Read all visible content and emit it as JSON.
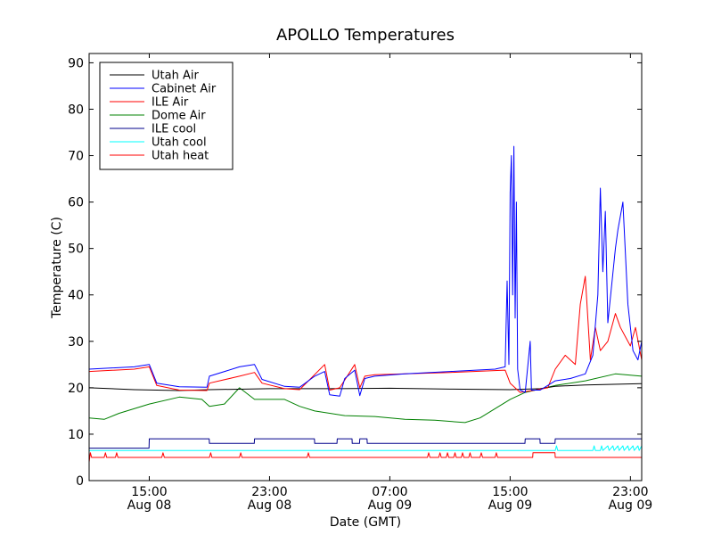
{
  "chart_data": {
    "type": "line",
    "title": "APOLLO Temperatures",
    "xlabel": "Date (GMT)",
    "ylabel": "Temperature (C)",
    "xlim": [
      "2012-08-08 11:00",
      "2012-08-09 23:45"
    ],
    "ylim": [
      0,
      92
    ],
    "grid": false,
    "legend": "top-left",
    "y_ticks": [
      0,
      10,
      20,
      30,
      40,
      50,
      60,
      70,
      80,
      90
    ],
    "x_ticks": [
      {
        "t": "2012-08-08 15:00",
        "line1": "15:00",
        "line2": "Aug 08"
      },
      {
        "t": "2012-08-08 23:00",
        "line1": "23:00",
        "line2": "Aug 08"
      },
      {
        "t": "2012-08-09 07:00",
        "line1": "07:00",
        "line2": "Aug 09"
      },
      {
        "t": "2012-08-09 15:00",
        "line1": "15:00",
        "line2": "Aug 09"
      },
      {
        "t": "2012-08-09 23:00",
        "line1": "23:00",
        "line2": "Aug 09"
      }
    ],
    "series": [
      {
        "name": "Utah Air",
        "color": "#000000",
        "points": [
          [
            "2012-08-08 11:00",
            20.0
          ],
          [
            "2012-08-08 14:00",
            19.6
          ],
          [
            "2012-08-08 17:00",
            19.4
          ],
          [
            "2012-08-08 19:00",
            19.6
          ],
          [
            "2012-08-08 23:00",
            19.8
          ],
          [
            "2012-08-09 03:00",
            19.8
          ],
          [
            "2012-08-09 07:00",
            19.9
          ],
          [
            "2012-08-09 11:00",
            19.7
          ],
          [
            "2012-08-09 15:00",
            19.6
          ],
          [
            "2012-08-09 17:00",
            19.8
          ],
          [
            "2012-08-09 18:00",
            20.3
          ],
          [
            "2012-08-09 20:00",
            20.6
          ],
          [
            "2012-08-09 23:45",
            20.9
          ]
        ]
      },
      {
        "name": "Cabinet Air",
        "color": "#0000ff",
        "points": [
          [
            "2012-08-08 11:00",
            24.0
          ],
          [
            "2012-08-08 14:00",
            24.5
          ],
          [
            "2012-08-08 15:00",
            25.0
          ],
          [
            "2012-08-08 15:30",
            21.0
          ],
          [
            "2012-08-08 17:00",
            20.2
          ],
          [
            "2012-08-08 18:50",
            20.1
          ],
          [
            "2012-08-08 19:00",
            22.5
          ],
          [
            "2012-08-08 21:00",
            24.5
          ],
          [
            "2012-08-08 22:00",
            25.0
          ],
          [
            "2012-08-08 22:30",
            21.8
          ],
          [
            "2012-08-09 00:00",
            20.3
          ],
          [
            "2012-08-09 01:00",
            20.1
          ],
          [
            "2012-08-09 02:00",
            22.5
          ],
          [
            "2012-08-09 02:40",
            23.5
          ],
          [
            "2012-08-09 03:00",
            18.5
          ],
          [
            "2012-08-09 03:40",
            18.2
          ],
          [
            "2012-08-09 04:00",
            22.0
          ],
          [
            "2012-08-09 04:40",
            23.8
          ],
          [
            "2012-08-09 05:00",
            18.3
          ],
          [
            "2012-08-09 05:20",
            22.0
          ],
          [
            "2012-08-09 06:00",
            22.5
          ],
          [
            "2012-08-09 08:00",
            23.0
          ],
          [
            "2012-08-09 11:00",
            23.5
          ],
          [
            "2012-08-09 14:00",
            24.0
          ],
          [
            "2012-08-09 14:40",
            24.5
          ],
          [
            "2012-08-09 14:48",
            43.0
          ],
          [
            "2012-08-09 14:55",
            25.0
          ],
          [
            "2012-08-09 15:00",
            62.0
          ],
          [
            "2012-08-09 15:05",
            70.0
          ],
          [
            "2012-08-09 15:10",
            40.0
          ],
          [
            "2012-08-09 15:15",
            72.0
          ],
          [
            "2012-08-09 15:20",
            35.0
          ],
          [
            "2012-08-09 15:25",
            60.0
          ],
          [
            "2012-08-09 15:30",
            24.0
          ],
          [
            "2012-08-09 15:40",
            19.5
          ],
          [
            "2012-08-09 16:00",
            19.0
          ],
          [
            "2012-08-09 16:20",
            30.0
          ],
          [
            "2012-08-09 16:25",
            19.5
          ],
          [
            "2012-08-09 17:00",
            19.5
          ],
          [
            "2012-08-09 18:00",
            21.5
          ],
          [
            "2012-08-09 19:00",
            22.0
          ],
          [
            "2012-08-09 20:00",
            23.0
          ],
          [
            "2012-08-09 20:30",
            27.0
          ],
          [
            "2012-08-09 20:50",
            40.0
          ],
          [
            "2012-08-09 21:00",
            63.0
          ],
          [
            "2012-08-09 21:10",
            45.0
          ],
          [
            "2012-08-09 21:20",
            58.0
          ],
          [
            "2012-08-09 21:30",
            34.0
          ],
          [
            "2012-08-09 22:00",
            50.0
          ],
          [
            "2012-08-09 22:10",
            54.0
          ],
          [
            "2012-08-09 22:30",
            60.0
          ],
          [
            "2012-08-09 22:50",
            38.0
          ],
          [
            "2012-08-09 23:10",
            28.0
          ],
          [
            "2012-08-09 23:30",
            26.0
          ],
          [
            "2012-08-09 23:45",
            30.0
          ]
        ]
      },
      {
        "name": "ILE Air",
        "color": "#ff0000",
        "points": [
          [
            "2012-08-08 11:00",
            23.5
          ],
          [
            "2012-08-08 14:00",
            24.0
          ],
          [
            "2012-08-08 15:00",
            24.5
          ],
          [
            "2012-08-08 15:30",
            20.5
          ],
          [
            "2012-08-08 17:00",
            19.5
          ],
          [
            "2012-08-08 18:50",
            19.4
          ],
          [
            "2012-08-08 19:00",
            21.0
          ],
          [
            "2012-08-08 21:00",
            22.5
          ],
          [
            "2012-08-08 22:00",
            23.3
          ],
          [
            "2012-08-08 22:30",
            21.0
          ],
          [
            "2012-08-09 00:00",
            19.8
          ],
          [
            "2012-08-09 01:00",
            19.6
          ],
          [
            "2012-08-09 02:40",
            25.0
          ],
          [
            "2012-08-09 03:00",
            19.5
          ],
          [
            "2012-08-09 03:40",
            20.0
          ],
          [
            "2012-08-09 04:40",
            25.0
          ],
          [
            "2012-08-09 05:00",
            20.0
          ],
          [
            "2012-08-09 05:20",
            22.5
          ],
          [
            "2012-08-09 06:00",
            22.8
          ],
          [
            "2012-08-09 11:00",
            23.3
          ],
          [
            "2012-08-09 14:40",
            23.8
          ],
          [
            "2012-08-09 15:00",
            21.0
          ],
          [
            "2012-08-09 15:40",
            19.0
          ],
          [
            "2012-08-09 16:40",
            19.5
          ],
          [
            "2012-08-09 17:30",
            20.0
          ],
          [
            "2012-08-09 18:00",
            24.0
          ],
          [
            "2012-08-09 18:40",
            27.0
          ],
          [
            "2012-08-09 19:20",
            25.0
          ],
          [
            "2012-08-09 19:40",
            38.0
          ],
          [
            "2012-08-09 20:00",
            44.0
          ],
          [
            "2012-08-09 20:20",
            26.0
          ],
          [
            "2012-08-09 20:40",
            33.0
          ],
          [
            "2012-08-09 21:00",
            28.0
          ],
          [
            "2012-08-09 21:30",
            30.0
          ],
          [
            "2012-08-09 22:00",
            36.0
          ],
          [
            "2012-08-09 22:20",
            33.0
          ],
          [
            "2012-08-09 22:40",
            31.0
          ],
          [
            "2012-08-09 23:00",
            29.0
          ],
          [
            "2012-08-09 23:20",
            33.0
          ],
          [
            "2012-08-09 23:45",
            26.0
          ]
        ]
      },
      {
        "name": "Dome Air",
        "color": "#008000",
        "points": [
          [
            "2012-08-08 11:00",
            13.5
          ],
          [
            "2012-08-08 12:00",
            13.2
          ],
          [
            "2012-08-08 13:00",
            14.5
          ],
          [
            "2012-08-08 15:00",
            16.5
          ],
          [
            "2012-08-08 17:00",
            18.0
          ],
          [
            "2012-08-08 18:30",
            17.5
          ],
          [
            "2012-08-08 19:00",
            16.0
          ],
          [
            "2012-08-08 20:00",
            16.5
          ],
          [
            "2012-08-08 21:00",
            20.0
          ],
          [
            "2012-08-08 22:00",
            17.5
          ],
          [
            "2012-08-09 00:00",
            17.5
          ],
          [
            "2012-08-09 01:00",
            16.0
          ],
          [
            "2012-08-09 02:00",
            15.0
          ],
          [
            "2012-08-09 04:00",
            14.0
          ],
          [
            "2012-08-09 06:00",
            13.8
          ],
          [
            "2012-08-09 08:00",
            13.2
          ],
          [
            "2012-08-09 10:00",
            13.0
          ],
          [
            "2012-08-09 12:00",
            12.5
          ],
          [
            "2012-08-09 13:00",
            13.5
          ],
          [
            "2012-08-09 14:00",
            15.5
          ],
          [
            "2012-08-09 15:00",
            17.5
          ],
          [
            "2012-08-09 16:00",
            19.0
          ],
          [
            "2012-08-09 18:00",
            20.5
          ],
          [
            "2012-08-09 20:00",
            21.5
          ],
          [
            "2012-08-09 22:00",
            23.0
          ],
          [
            "2012-08-09 23:45",
            22.5
          ]
        ]
      },
      {
        "name": "ILE cool",
        "color": "#00008b",
        "points": [
          [
            "2012-08-08 11:00",
            7.0
          ],
          [
            "2012-08-08 14:59",
            7.0
          ],
          [
            "2012-08-08 15:00",
            9.0
          ],
          [
            "2012-08-08 18:59",
            9.0
          ],
          [
            "2012-08-08 19:00",
            8.0
          ],
          [
            "2012-08-08 21:59",
            8.0
          ],
          [
            "2012-08-08 22:00",
            9.0
          ],
          [
            "2012-08-09 01:59",
            9.0
          ],
          [
            "2012-08-09 02:00",
            8.0
          ],
          [
            "2012-08-09 03:29",
            8.0
          ],
          [
            "2012-08-09 03:30",
            9.0
          ],
          [
            "2012-08-09 04:29",
            9.0
          ],
          [
            "2012-08-09 04:30",
            8.0
          ],
          [
            "2012-08-09 04:59",
            8.0
          ],
          [
            "2012-08-09 05:00",
            9.0
          ],
          [
            "2012-08-09 05:29",
            9.0
          ],
          [
            "2012-08-09 05:30",
            8.0
          ],
          [
            "2012-08-09 15:59",
            8.0
          ],
          [
            "2012-08-09 16:00",
            9.0
          ],
          [
            "2012-08-09 16:59",
            9.0
          ],
          [
            "2012-08-09 17:00",
            8.0
          ],
          [
            "2012-08-09 17:59",
            8.0
          ],
          [
            "2012-08-09 18:00",
            9.0
          ],
          [
            "2012-08-09 23:45",
            9.0
          ]
        ]
      },
      {
        "name": "Utah cool",
        "color": "#00ffff",
        "points": [
          [
            "2012-08-08 11:00",
            6.5
          ],
          [
            "2012-08-09 18:00",
            6.5
          ],
          [
            "2012-08-09 18:05",
            7.5
          ],
          [
            "2012-08-09 18:10",
            6.5
          ],
          [
            "2012-08-09 20:30",
            6.5
          ],
          [
            "2012-08-09 20:35",
            7.5
          ],
          [
            "2012-08-09 20:40",
            6.5
          ],
          [
            "2012-08-09 21:00",
            6.5
          ],
          [
            "2012-08-09 21:05",
            7.5
          ],
          [
            "2012-08-09 21:10",
            6.5
          ],
          [
            "2012-08-09 21:30",
            7.5
          ],
          [
            "2012-08-09 21:35",
            6.5
          ],
          [
            "2012-08-09 21:50",
            7.5
          ],
          [
            "2012-08-09 21:55",
            6.5
          ],
          [
            "2012-08-09 22:10",
            7.5
          ],
          [
            "2012-08-09 22:15",
            6.5
          ],
          [
            "2012-08-09 22:30",
            7.5
          ],
          [
            "2012-08-09 22:35",
            6.5
          ],
          [
            "2012-08-09 22:50",
            7.5
          ],
          [
            "2012-08-09 22:55",
            6.5
          ],
          [
            "2012-08-09 23:10",
            7.5
          ],
          [
            "2012-08-09 23:15",
            6.5
          ],
          [
            "2012-08-09 23:30",
            7.5
          ],
          [
            "2012-08-09 23:35",
            6.5
          ],
          [
            "2012-08-09 23:45",
            7.5
          ]
        ]
      },
      {
        "name": "Utah heat",
        "color": "#ff0000",
        "points": [
          [
            "2012-08-08 11:00",
            4.0
          ],
          [
            "2012-08-08 11:05",
            6.0
          ],
          [
            "2012-08-08 11:10",
            5.0
          ],
          [
            "2012-08-08 12:00",
            5.0
          ],
          [
            "2012-08-08 12:05",
            6.0
          ],
          [
            "2012-08-08 12:10",
            5.0
          ],
          [
            "2012-08-08 12:45",
            5.0
          ],
          [
            "2012-08-08 12:50",
            6.0
          ],
          [
            "2012-08-08 12:55",
            5.0
          ],
          [
            "2012-08-08 15:50",
            5.0
          ],
          [
            "2012-08-08 15:55",
            6.0
          ],
          [
            "2012-08-08 16:00",
            5.0
          ],
          [
            "2012-08-08 19:00",
            5.0
          ],
          [
            "2012-08-08 19:05",
            6.0
          ],
          [
            "2012-08-08 19:10",
            5.0
          ],
          [
            "2012-08-08 21:00",
            5.0
          ],
          [
            "2012-08-08 21:05",
            6.0
          ],
          [
            "2012-08-08 21:10",
            5.0
          ],
          [
            "2012-08-09 01:30",
            5.0
          ],
          [
            "2012-08-09 01:35",
            6.0
          ],
          [
            "2012-08-09 01:40",
            5.0
          ],
          [
            "2012-08-09 09:30",
            5.0
          ],
          [
            "2012-08-09 09:35",
            6.0
          ],
          [
            "2012-08-09 09:40",
            5.0
          ],
          [
            "2012-08-09 10:15",
            5.0
          ],
          [
            "2012-08-09 10:20",
            6.0
          ],
          [
            "2012-08-09 10:25",
            5.0
          ],
          [
            "2012-08-09 10:45",
            5.0
          ],
          [
            "2012-08-09 10:50",
            6.0
          ],
          [
            "2012-08-09 10:55",
            5.0
          ],
          [
            "2012-08-09 11:15",
            5.0
          ],
          [
            "2012-08-09 11:20",
            6.0
          ],
          [
            "2012-08-09 11:25",
            5.0
          ],
          [
            "2012-08-09 11:45",
            5.0
          ],
          [
            "2012-08-09 11:50",
            6.0
          ],
          [
            "2012-08-09 11:55",
            5.0
          ],
          [
            "2012-08-09 12:15",
            5.0
          ],
          [
            "2012-08-09 12:20",
            6.0
          ],
          [
            "2012-08-09 12:25",
            5.0
          ],
          [
            "2012-08-09 13:00",
            5.0
          ],
          [
            "2012-08-09 13:05",
            6.0
          ],
          [
            "2012-08-09 13:10",
            5.0
          ],
          [
            "2012-08-09 14:00",
            5.0
          ],
          [
            "2012-08-09 14:05",
            6.0
          ],
          [
            "2012-08-09 14:10",
            5.0
          ],
          [
            "2012-08-09 16:30",
            5.0
          ],
          [
            "2012-08-09 16:31",
            6.0
          ],
          [
            "2012-08-09 17:59",
            6.0
          ],
          [
            "2012-08-09 18:00",
            5.0
          ],
          [
            "2012-08-09 23:45",
            5.0
          ]
        ]
      }
    ]
  }
}
